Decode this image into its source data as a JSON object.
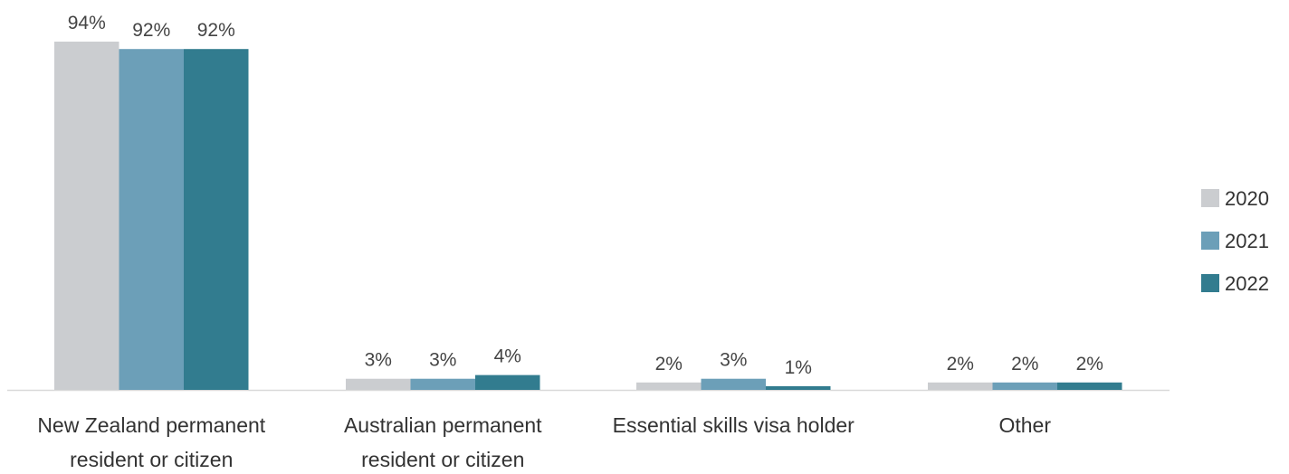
{
  "chart_data": {
    "type": "bar",
    "categories": [
      [
        "New Zealand permanent",
        "resident or citizen"
      ],
      [
        "Australian permanent",
        "resident or citizen"
      ],
      [
        "Essential skills visa holder"
      ],
      [
        "Other"
      ]
    ],
    "series": [
      {
        "name": "2020",
        "color": "#cbcdd0",
        "values": [
          94,
          3,
          2,
          2
        ],
        "labels": [
          "94%",
          "3%",
          "2%",
          "2%"
        ]
      },
      {
        "name": "2021",
        "color": "#6c9fb8",
        "values": [
          92,
          3,
          3,
          2
        ],
        "labels": [
          "92%",
          "3%",
          "3%",
          "2%"
        ]
      },
      {
        "name": "2022",
        "color": "#327c8f",
        "values": [
          92,
          4,
          1,
          2
        ],
        "labels": [
          "92%",
          "4%",
          "1%",
          "2%"
        ]
      }
    ],
    "ylim": [
      0,
      94
    ],
    "legend": "right",
    "grid": false,
    "axis_color": "#d9d9d9"
  }
}
